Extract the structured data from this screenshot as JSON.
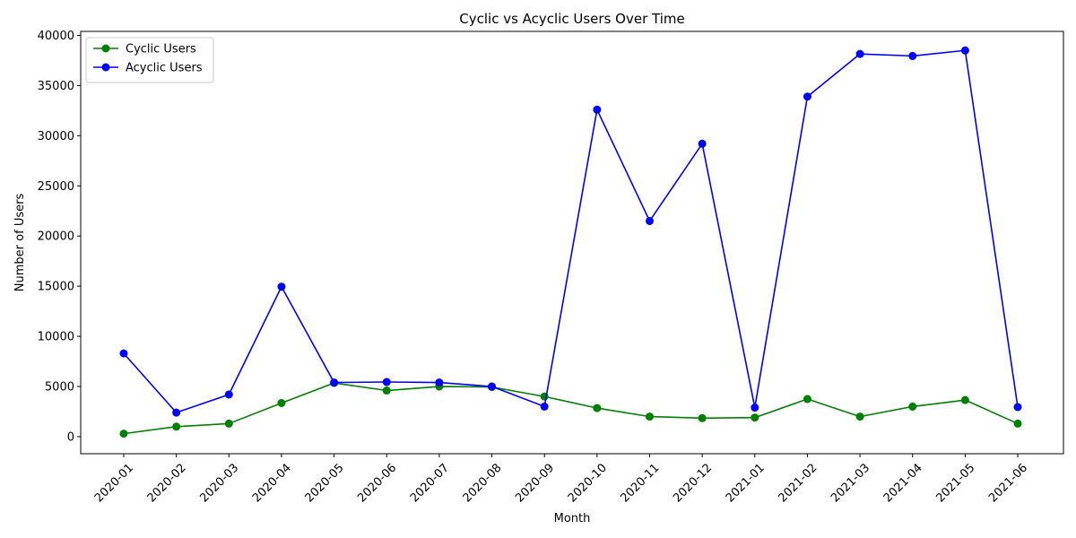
{
  "chart_data": {
    "type": "line",
    "title": "Cyclic vs Acyclic Users Over Time",
    "xlabel": "Month",
    "ylabel": "Number of Users",
    "categories": [
      "2020-01",
      "2020-02",
      "2020-03",
      "2020-04",
      "2020-05",
      "2020-06",
      "2020-07",
      "2020-08",
      "2020-09",
      "2020-10",
      "2020-11",
      "2020-12",
      "2021-01",
      "2021-02",
      "2021-03",
      "2021-04",
      "2021-05",
      "2021-06"
    ],
    "ylim": [
      -1700,
      40400
    ],
    "yticks": [
      0,
      5000,
      10000,
      15000,
      20000,
      25000,
      30000,
      35000,
      40000
    ],
    "grid": false,
    "legend_position": "top-left",
    "series": [
      {
        "name": "Cyclic Users",
        "color": "#008000",
        "values": [
          300,
          1000,
          1300,
          3350,
          5350,
          4600,
          5000,
          4950,
          4000,
          2850,
          2000,
          1850,
          1900,
          3750,
          2000,
          3000,
          3650,
          1300
        ]
      },
      {
        "name": "Acyclic Users",
        "color": "#0000ff",
        "values": [
          8300,
          2400,
          4200,
          14950,
          5400,
          5450,
          5400,
          5000,
          3000,
          32600,
          21500,
          29200,
          2900,
          33900,
          38150,
          37950,
          38500,
          2950
        ]
      }
    ]
  }
}
